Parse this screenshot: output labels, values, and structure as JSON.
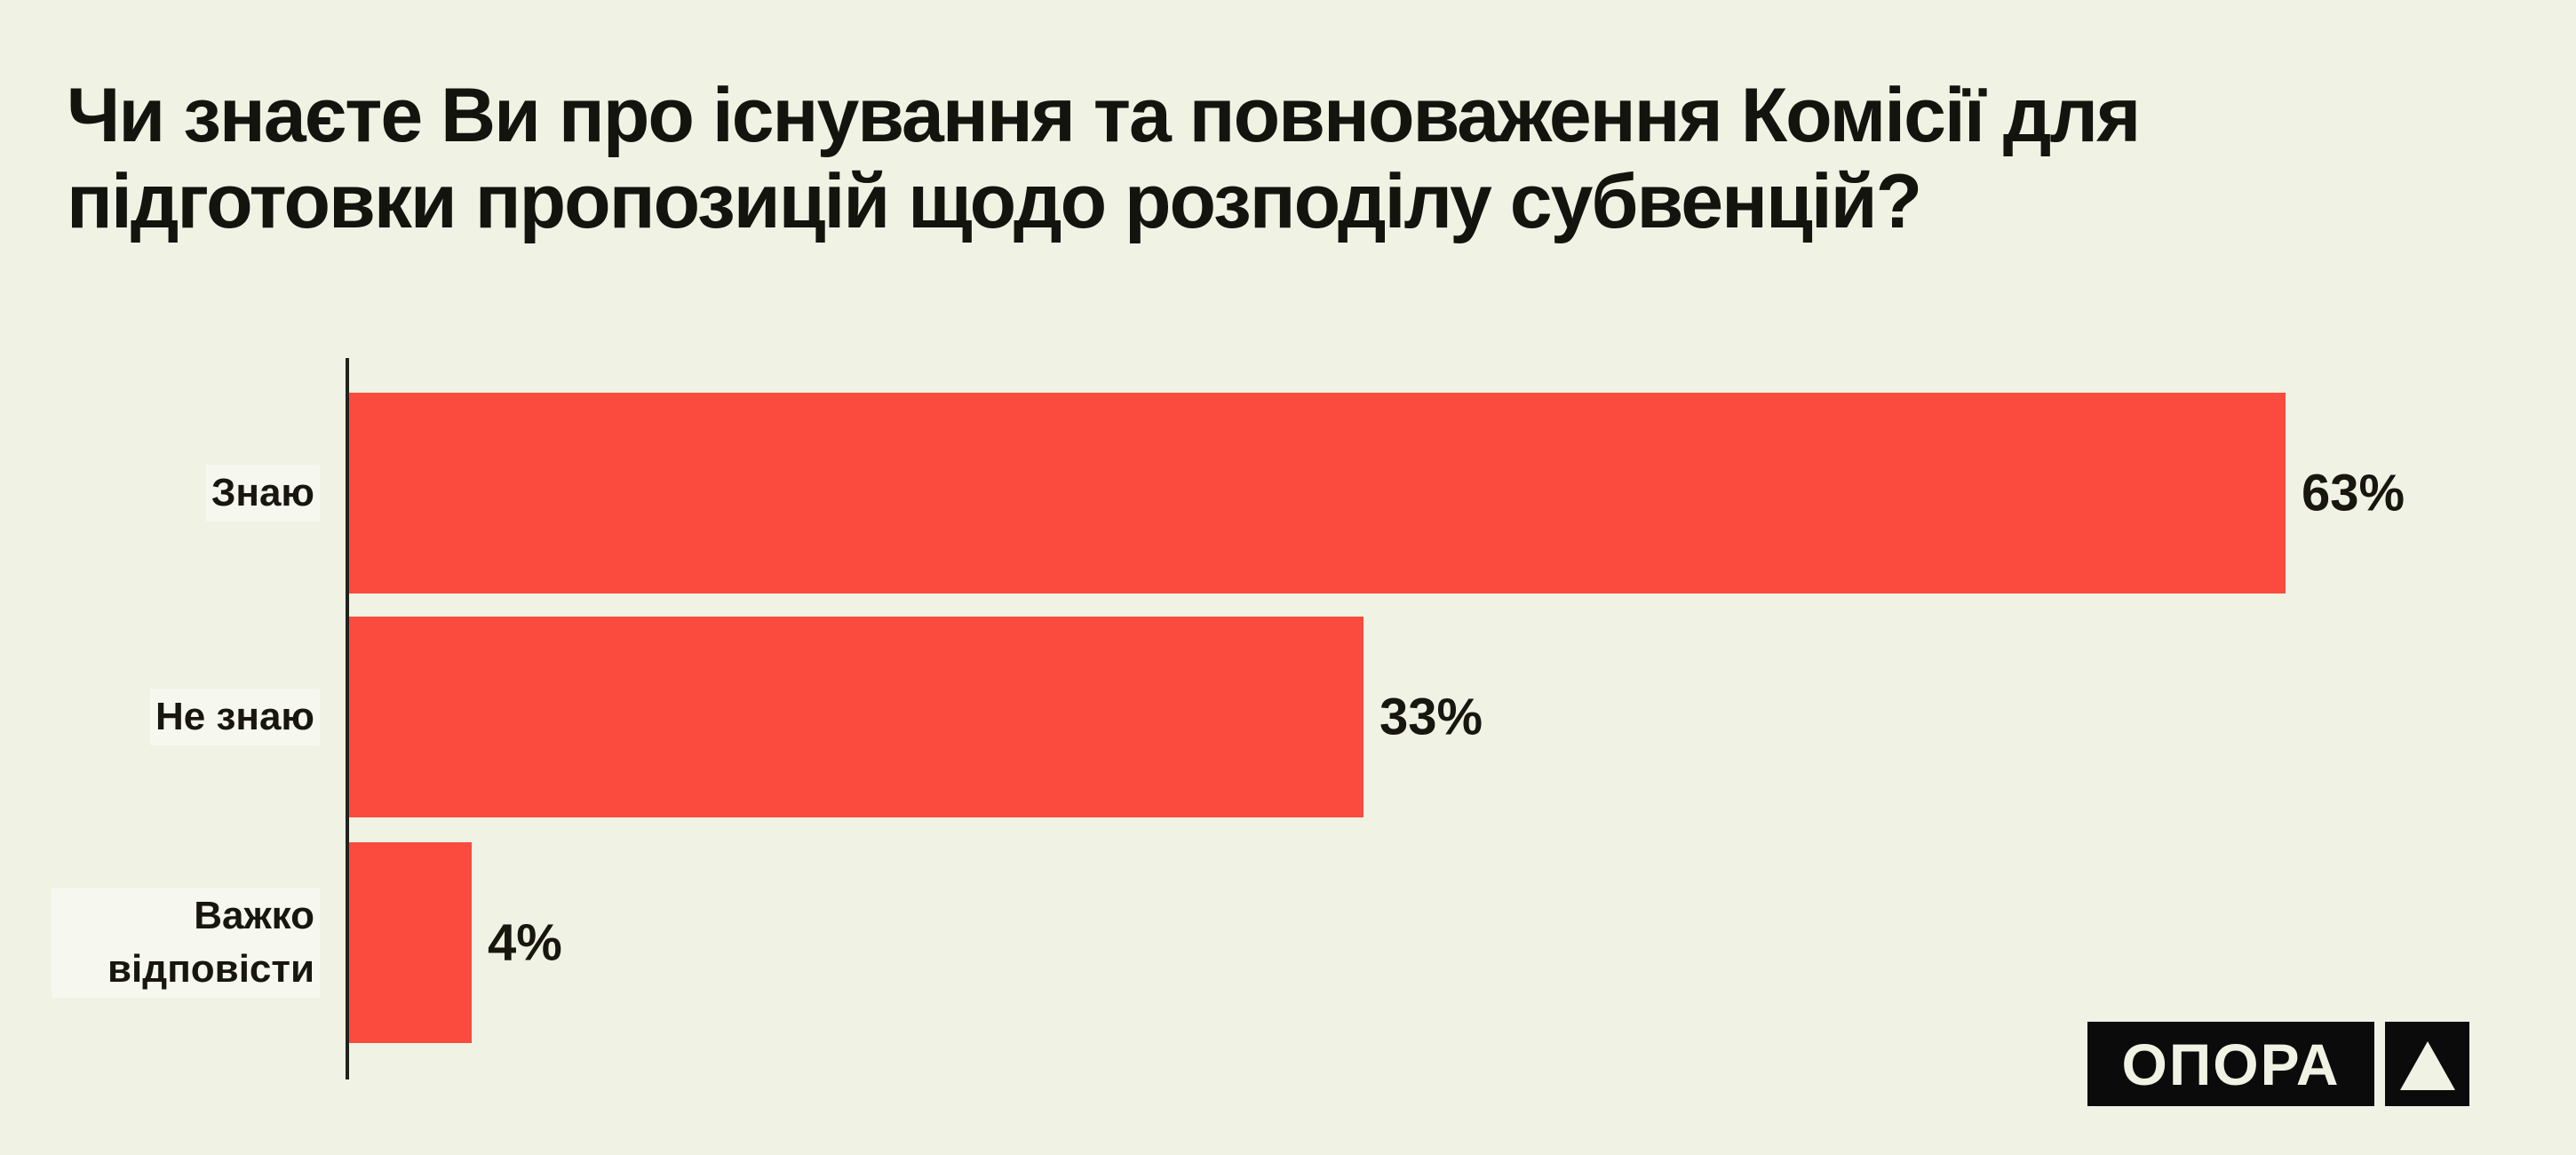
{
  "title": "Чи знаєте Ви про існування та повноваження Комісії для підготовки пропозицій щодо розподілу субвенцій?",
  "colors": {
    "background": "#f0f2e4",
    "bar": "#fa4b3e",
    "text": "#17170f",
    "axis": "#22221c",
    "logo_background": "#0b0b0b",
    "logo_foreground": "#f0f2e4"
  },
  "chart_data": {
    "type": "bar",
    "orientation": "horizontal",
    "title": "Чи знаєте Ви про існування та повноваження Комісії для підготовки пропозицій щодо розподілу субвенцій?",
    "categories": [
      "Знаю",
      "Не знаю",
      "Важко відповісти"
    ],
    "values": [
      63,
      33,
      4
    ],
    "value_labels": [
      "63%",
      "33%",
      "4%"
    ],
    "unit": "%",
    "xlim": [
      0,
      70
    ],
    "grid": false,
    "legend": false,
    "bar_color": "#fa4b3e"
  },
  "logo": {
    "text": "ОПОРА",
    "symbol": "triangle"
  }
}
